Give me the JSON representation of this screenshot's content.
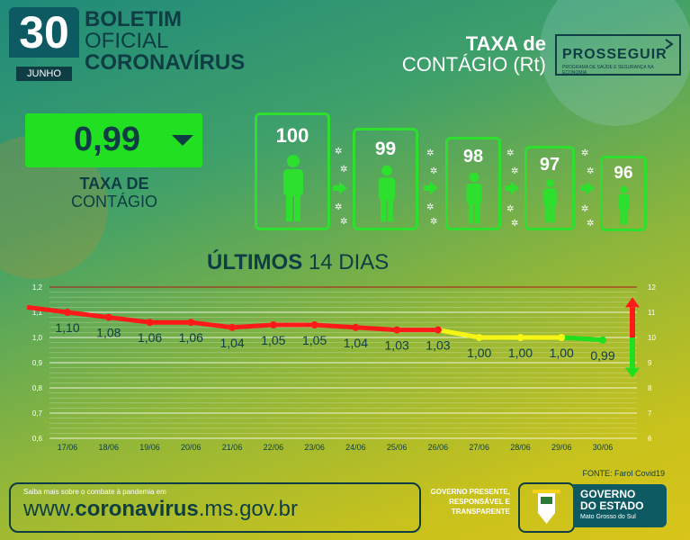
{
  "header": {
    "day": "30",
    "month": "JUNHO",
    "title_line1": "BOLETIM",
    "title_line2": "OFICIAL",
    "title_line3": "CORONAVÍRUS",
    "taxa_line1": "TAXA de",
    "taxa_line2": "CONTÁGIO (Rt)",
    "logo_text": "PROSSEGUIR",
    "logo_sub": "PROGRAMA DE SAÚDE E SEGURANÇA NA ECONOMIA"
  },
  "rate": {
    "value": "0,99",
    "label_line1": "TAXA DE",
    "label_line2": "CONTÁGIO"
  },
  "people_cards": [
    {
      "value": "100"
    },
    {
      "value": "99"
    },
    {
      "value": "98"
    },
    {
      "value": "97"
    },
    {
      "value": "96"
    }
  ],
  "chart_title": {
    "bold": "ÚLTIMOS",
    "normal": "14 DIAS"
  },
  "chart_data": {
    "type": "line",
    "x": [
      "17/06",
      "18/06",
      "19/06",
      "20/06",
      "21/06",
      "22/06",
      "23/06",
      "24/06",
      "25/06",
      "26/06",
      "27/06",
      "28/06",
      "29/06",
      "30/06"
    ],
    "series": [
      {
        "values": [
          1.1,
          1.08,
          1.06,
          1.06,
          1.04,
          1.05,
          1.05,
          1.04,
          1.03,
          1.03,
          1.0,
          1.0,
          1.0,
          0.99
        ]
      }
    ],
    "labels": [
      "1,10",
      "1,08",
      "1,06",
      "1,06",
      "1,04",
      "1,05",
      "1,05",
      "1,04",
      "1,03",
      "1,03",
      "1,00",
      "1,00",
      "1,00",
      "0,99"
    ],
    "start_value": 1.12,
    "ylim": [
      0.6,
      1.2
    ],
    "y_ticks_left": [
      "1,2",
      "1,1",
      "1,0",
      "0,9",
      "0,8",
      "0,7",
      "0,6"
    ],
    "y_ticks_right": [
      "12",
      "11",
      "10",
      "9",
      "8",
      "7",
      "6"
    ],
    "colors": {
      "above": "#ff1a1a",
      "transition": "#f5f516",
      "below": "#1ee01e"
    }
  },
  "fonte": "FONTE: Farol Covid19",
  "footer": {
    "small": "Saiba mais sobre o combate à pandemia em",
    "url_pre": "www.",
    "url_bold": "coronavirus",
    "url_post": ".ms.gov.br",
    "slogan": "GOVERNO PRESENTE, RESPONSÁVEL E TRANSPARENTE",
    "gov_line1": "GOVERNO",
    "gov_line2": "DO ESTADO",
    "gov_state": "Mato Grosso do Sul"
  }
}
